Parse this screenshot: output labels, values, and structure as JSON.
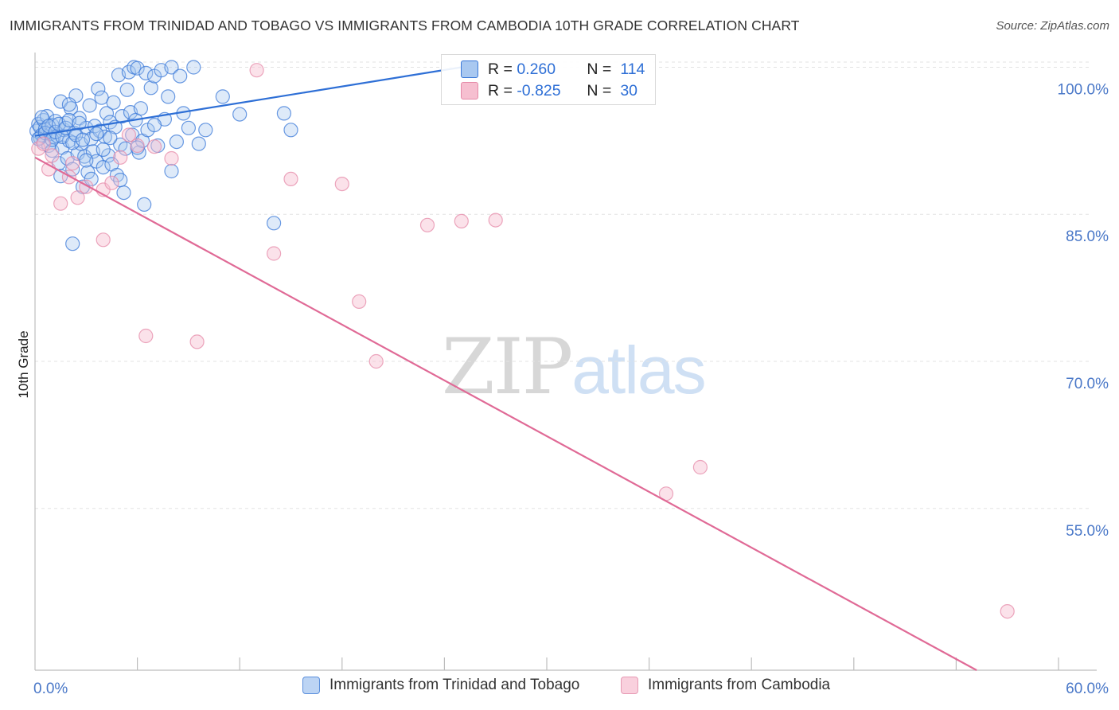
{
  "title": "IMMIGRANTS FROM TRINIDAD AND TOBAGO VS IMMIGRANTS FROM CAMBODIA 10TH GRADE CORRELATION CHART",
  "source": "Source: ZipAtlas.com",
  "watermark": {
    "zip": "ZIP",
    "atlas": "atlas"
  },
  "colors": {
    "blue_fill": "#a9c8f0",
    "blue_stroke": "#3a78d8",
    "blue_line": "#2e6fd6",
    "pink_fill": "#f6bfd0",
    "pink_stroke": "#e58aa8",
    "pink_line": "#e06a96",
    "tick_text": "#4a78c8",
    "grid": "#e3e3e3"
  },
  "stats": [
    {
      "r_label": "R =",
      "r_value": "0.260",
      "n_label": "N =",
      "n_value": "114",
      "color": "blue"
    },
    {
      "r_label": "R =",
      "r_value": "-0.825",
      "n_label": "N =",
      "n_value": "30",
      "color": "pink"
    }
  ],
  "chart_data": {
    "type": "scatter",
    "title": "IMMIGRANTS FROM TRINIDAD AND TOBAGO VS IMMIGRANTS FROM CAMBODIA 10TH GRADE CORRELATION CHART",
    "xlabel": "",
    "ylabel": "10th Grade",
    "xlim": [
      0,
      60
    ],
    "ylim": [
      38.5,
      101.5
    ],
    "y_ticks": [
      55.0,
      70.0,
      85.0,
      100.0
    ],
    "y_tick_labels": [
      "55.0%",
      "70.0%",
      "85.0%",
      "100.0%"
    ],
    "x_tick_labels": [
      "0.0%",
      "60.0%"
    ],
    "grid": true,
    "legend_position": "bottom",
    "series": [
      {
        "name": "Immigrants from Trinidad and Tobago",
        "color": "blue",
        "trend": {
          "x": [
            0,
            25
          ],
          "y": [
            93.0,
            100.0
          ]
        },
        "points": [
          [
            0.1,
            93.5
          ],
          [
            0.2,
            94.2
          ],
          [
            0.3,
            92.8
          ],
          [
            0.3,
            93.9
          ],
          [
            0.4,
            93.1
          ],
          [
            0.5,
            94.6
          ],
          [
            0.5,
            92.4
          ],
          [
            0.6,
            93.7
          ],
          [
            0.7,
            95.0
          ],
          [
            0.8,
            92.0
          ],
          [
            0.9,
            93.2
          ],
          [
            1.0,
            94.1
          ],
          [
            1.0,
            91.5
          ],
          [
            1.1,
            92.9
          ],
          [
            1.2,
            94.5
          ],
          [
            1.3,
            93.0
          ],
          [
            1.4,
            90.2
          ],
          [
            1.5,
            96.5
          ],
          [
            1.6,
            91.8
          ],
          [
            1.7,
            93.6
          ],
          [
            1.8,
            94.3
          ],
          [
            1.9,
            90.7
          ],
          [
            2.0,
            92.5
          ],
          [
            2.1,
            95.8
          ],
          [
            2.2,
            89.6
          ],
          [
            2.3,
            93.3
          ],
          [
            2.4,
            97.1
          ],
          [
            2.5,
            91.2
          ],
          [
            2.6,
            94.8
          ],
          [
            2.7,
            92.2
          ],
          [
            2.8,
            87.8
          ],
          [
            2.9,
            90.9
          ],
          [
            3.0,
            93.8
          ],
          [
            3.1,
            89.3
          ],
          [
            3.2,
            96.1
          ],
          [
            3.3,
            92.7
          ],
          [
            3.4,
            91.4
          ],
          [
            3.5,
            94.0
          ],
          [
            3.6,
            90.4
          ],
          [
            3.7,
            97.8
          ],
          [
            3.8,
            93.5
          ],
          [
            3.9,
            96.9
          ],
          [
            4.0,
            89.8
          ],
          [
            4.1,
            92.9
          ],
          [
            4.2,
            95.3
          ],
          [
            4.3,
            91.0
          ],
          [
            4.4,
            94.4
          ],
          [
            4.5,
            90.1
          ],
          [
            4.6,
            96.4
          ],
          [
            4.7,
            93.9
          ],
          [
            4.8,
            89.0
          ],
          [
            4.9,
            99.2
          ],
          [
            5.0,
            92.1
          ],
          [
            5.1,
            95.0
          ],
          [
            5.2,
            87.2
          ],
          [
            5.3,
            91.7
          ],
          [
            5.4,
            97.7
          ],
          [
            5.5,
            99.5
          ],
          [
            5.6,
            95.4
          ],
          [
            5.7,
            93.1
          ],
          [
            5.8,
            100.0
          ],
          [
            5.9,
            94.6
          ],
          [
            6.0,
            99.9
          ],
          [
            6.1,
            91.3
          ],
          [
            6.2,
            95.8
          ],
          [
            6.3,
            92.5
          ],
          [
            6.4,
            86.0
          ],
          [
            6.5,
            99.4
          ],
          [
            6.6,
            93.6
          ],
          [
            6.8,
            97.9
          ],
          [
            7.0,
            99.1
          ],
          [
            7.2,
            92.0
          ],
          [
            7.4,
            99.7
          ],
          [
            7.6,
            94.7
          ],
          [
            7.8,
            97.0
          ],
          [
            8.0,
            100.0
          ],
          [
            8.3,
            92.4
          ],
          [
            8.5,
            99.1
          ],
          [
            8.7,
            95.3
          ],
          [
            9.0,
            93.8
          ],
          [
            9.3,
            100.0
          ],
          [
            9.6,
            92.2
          ],
          [
            10.0,
            93.6
          ],
          [
            11.0,
            97.0
          ],
          [
            12.0,
            95.2
          ],
          [
            14.0,
            84.1
          ],
          [
            14.6,
            95.3
          ],
          [
            15.0,
            93.6
          ],
          [
            0.2,
            92.7
          ],
          [
            0.4,
            94.9
          ],
          [
            0.6,
            93.3
          ],
          [
            0.8,
            94.0
          ],
          [
            1.0,
            92.6
          ],
          [
            1.2,
            93.4
          ],
          [
            1.4,
            94.2
          ],
          [
            1.6,
            92.9
          ],
          [
            1.8,
            93.8
          ],
          [
            2.0,
            94.6
          ],
          [
            2.2,
            92.3
          ],
          [
            2.4,
            93.1
          ],
          [
            2.6,
            94.3
          ],
          [
            2.8,
            92.6
          ],
          [
            3.0,
            90.5
          ],
          [
            3.3,
            88.6
          ],
          [
            3.6,
            93.2
          ],
          [
            4.0,
            91.6
          ],
          [
            4.4,
            92.8
          ],
          [
            5.0,
            88.5
          ],
          [
            6.0,
            91.8
          ],
          [
            7.0,
            94.1
          ],
          [
            8.0,
            89.4
          ],
          [
            1.5,
            88.9
          ],
          [
            2.2,
            82.0
          ],
          [
            2.0,
            96.2
          ]
        ]
      },
      {
        "name": "Immigrants from Cambodia",
        "color": "pink",
        "trend": {
          "x": [
            0,
            55.2
          ],
          "y": [
            90.8,
            38.5
          ]
        },
        "points": [
          [
            0.2,
            91.7
          ],
          [
            0.5,
            92.2
          ],
          [
            0.8,
            89.6
          ],
          [
            1.0,
            91.0
          ],
          [
            1.5,
            86.1
          ],
          [
            2.0,
            88.8
          ],
          [
            2.2,
            90.2
          ],
          [
            2.5,
            86.7
          ],
          [
            3.0,
            87.8
          ],
          [
            4.0,
            87.5
          ],
          [
            4.5,
            88.2
          ],
          [
            5.0,
            90.8
          ],
          [
            5.5,
            93.1
          ],
          [
            6.0,
            92.0
          ],
          [
            7.0,
            91.9
          ],
          [
            4.0,
            82.4
          ],
          [
            8.0,
            90.7
          ],
          [
            13.0,
            99.7
          ],
          [
            14.0,
            81.0
          ],
          [
            15.0,
            88.6
          ],
          [
            18.0,
            88.1
          ],
          [
            19.0,
            76.1
          ],
          [
            6.5,
            72.6
          ],
          [
            9.5,
            72.0
          ],
          [
            20.0,
            70.0
          ],
          [
            23.0,
            83.9
          ],
          [
            25.0,
            84.3
          ],
          [
            27.0,
            84.4
          ],
          [
            37.0,
            56.5
          ],
          [
            39.0,
            59.2
          ]
        ],
        "outliers": [
          [
            57.0,
            44.5
          ]
        ]
      }
    ]
  },
  "legend": {
    "items": [
      {
        "label": "Immigrants from Trinidad and Tobago",
        "color": "blue"
      },
      {
        "label": "Immigrants from Cambodia",
        "color": "pink"
      }
    ]
  }
}
